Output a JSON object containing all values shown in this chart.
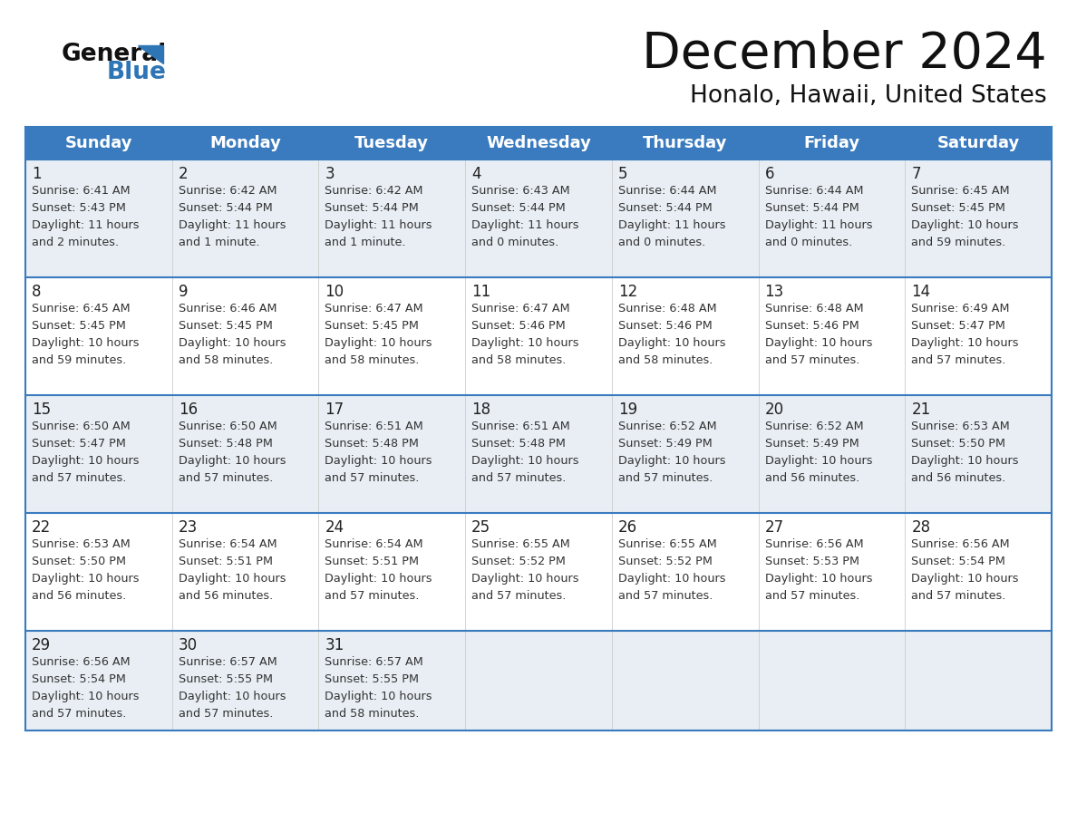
{
  "title": "December 2024",
  "subtitle": "Honalo, Hawaii, United States",
  "days_of_week": [
    "Sunday",
    "Monday",
    "Tuesday",
    "Wednesday",
    "Thursday",
    "Friday",
    "Saturday"
  ],
  "header_bg_color": "#3a7bbf",
  "header_text_color": "#ffffff",
  "cell_bg_light": "#e8eef4",
  "cell_bg_white": "#ffffff",
  "border_color": "#3a7bbf",
  "day_number_color": "#222222",
  "text_color": "#333333",
  "title_color": "#111111",
  "subtitle_color": "#111111",
  "logo_general_color": "#111111",
  "logo_blue_color": "#2e75b6",
  "calendar_data": [
    [
      {
        "day": 1,
        "sunrise": "6:41 AM",
        "sunset": "5:43 PM",
        "daylight_hours": 11,
        "daylight_minutes": 2
      },
      {
        "day": 2,
        "sunrise": "6:42 AM",
        "sunset": "5:44 PM",
        "daylight_hours": 11,
        "daylight_minutes": 1
      },
      {
        "day": 3,
        "sunrise": "6:42 AM",
        "sunset": "5:44 PM",
        "daylight_hours": 11,
        "daylight_minutes": 1
      },
      {
        "day": 4,
        "sunrise": "6:43 AM",
        "sunset": "5:44 PM",
        "daylight_hours": 11,
        "daylight_minutes": 0
      },
      {
        "day": 5,
        "sunrise": "6:44 AM",
        "sunset": "5:44 PM",
        "daylight_hours": 11,
        "daylight_minutes": 0
      },
      {
        "day": 6,
        "sunrise": "6:44 AM",
        "sunset": "5:44 PM",
        "daylight_hours": 11,
        "daylight_minutes": 0
      },
      {
        "day": 7,
        "sunrise": "6:45 AM",
        "sunset": "5:45 PM",
        "daylight_hours": 10,
        "daylight_minutes": 59
      }
    ],
    [
      {
        "day": 8,
        "sunrise": "6:45 AM",
        "sunset": "5:45 PM",
        "daylight_hours": 10,
        "daylight_minutes": 59
      },
      {
        "day": 9,
        "sunrise": "6:46 AM",
        "sunset": "5:45 PM",
        "daylight_hours": 10,
        "daylight_minutes": 58
      },
      {
        "day": 10,
        "sunrise": "6:47 AM",
        "sunset": "5:45 PM",
        "daylight_hours": 10,
        "daylight_minutes": 58
      },
      {
        "day": 11,
        "sunrise": "6:47 AM",
        "sunset": "5:46 PM",
        "daylight_hours": 10,
        "daylight_minutes": 58
      },
      {
        "day": 12,
        "sunrise": "6:48 AM",
        "sunset": "5:46 PM",
        "daylight_hours": 10,
        "daylight_minutes": 58
      },
      {
        "day": 13,
        "sunrise": "6:48 AM",
        "sunset": "5:46 PM",
        "daylight_hours": 10,
        "daylight_minutes": 57
      },
      {
        "day": 14,
        "sunrise": "6:49 AM",
        "sunset": "5:47 PM",
        "daylight_hours": 10,
        "daylight_minutes": 57
      }
    ],
    [
      {
        "day": 15,
        "sunrise": "6:50 AM",
        "sunset": "5:47 PM",
        "daylight_hours": 10,
        "daylight_minutes": 57
      },
      {
        "day": 16,
        "sunrise": "6:50 AM",
        "sunset": "5:48 PM",
        "daylight_hours": 10,
        "daylight_minutes": 57
      },
      {
        "day": 17,
        "sunrise": "6:51 AM",
        "sunset": "5:48 PM",
        "daylight_hours": 10,
        "daylight_minutes": 57
      },
      {
        "day": 18,
        "sunrise": "6:51 AM",
        "sunset": "5:48 PM",
        "daylight_hours": 10,
        "daylight_minutes": 57
      },
      {
        "day": 19,
        "sunrise": "6:52 AM",
        "sunset": "5:49 PM",
        "daylight_hours": 10,
        "daylight_minutes": 57
      },
      {
        "day": 20,
        "sunrise": "6:52 AM",
        "sunset": "5:49 PM",
        "daylight_hours": 10,
        "daylight_minutes": 56
      },
      {
        "day": 21,
        "sunrise": "6:53 AM",
        "sunset": "5:50 PM",
        "daylight_hours": 10,
        "daylight_minutes": 56
      }
    ],
    [
      {
        "day": 22,
        "sunrise": "6:53 AM",
        "sunset": "5:50 PM",
        "daylight_hours": 10,
        "daylight_minutes": 56
      },
      {
        "day": 23,
        "sunrise": "6:54 AM",
        "sunset": "5:51 PM",
        "daylight_hours": 10,
        "daylight_minutes": 56
      },
      {
        "day": 24,
        "sunrise": "6:54 AM",
        "sunset": "5:51 PM",
        "daylight_hours": 10,
        "daylight_minutes": 57
      },
      {
        "day": 25,
        "sunrise": "6:55 AM",
        "sunset": "5:52 PM",
        "daylight_hours": 10,
        "daylight_minutes": 57
      },
      {
        "day": 26,
        "sunrise": "6:55 AM",
        "sunset": "5:52 PM",
        "daylight_hours": 10,
        "daylight_minutes": 57
      },
      {
        "day": 27,
        "sunrise": "6:56 AM",
        "sunset": "5:53 PM",
        "daylight_hours": 10,
        "daylight_minutes": 57
      },
      {
        "day": 28,
        "sunrise": "6:56 AM",
        "sunset": "5:54 PM",
        "daylight_hours": 10,
        "daylight_minutes": 57
      }
    ],
    [
      {
        "day": 29,
        "sunrise": "6:56 AM",
        "sunset": "5:54 PM",
        "daylight_hours": 10,
        "daylight_minutes": 57
      },
      {
        "day": 30,
        "sunrise": "6:57 AM",
        "sunset": "5:55 PM",
        "daylight_hours": 10,
        "daylight_minutes": 57
      },
      {
        "day": 31,
        "sunrise": "6:57 AM",
        "sunset": "5:55 PM",
        "daylight_hours": 10,
        "daylight_minutes": 58
      },
      null,
      null,
      null,
      null
    ]
  ]
}
